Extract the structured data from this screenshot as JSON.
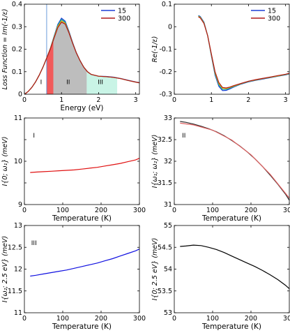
{
  "chart_data": [
    {
      "type": "area",
      "panel": "top-left",
      "ylabel": "Loss Function = Im(-1/ε)",
      "xlabel": "Energy (eV)",
      "xlim": [
        0,
        3.1
      ],
      "ylim": [
        0,
        0.4
      ],
      "xticks": [
        0,
        1,
        2,
        3
      ],
      "yticks": [
        0,
        0.1,
        0.2,
        0.3,
        0.4
      ],
      "ytick_labels": [
        "0",
        "0.1",
        "0.2",
        "0.3",
        "0.4"
      ],
      "legend": {
        "placement": "top-right",
        "entries": [
          {
            "label": "15",
            "color": "#1f3fd6"
          },
          {
            "label": "300",
            "color": "#b01818"
          }
        ]
      },
      "regions": [
        {
          "label": "I",
          "x_start": 0.6,
          "x_end": 0.78,
          "color": "#f25a5a"
        },
        {
          "label": "II",
          "x_start": 0.78,
          "x_end": 1.68,
          "color": "#bdbdbd"
        },
        {
          "label": "III",
          "x_start": 1.68,
          "x_end": 2.5,
          "color": "#c9f4e6"
        }
      ],
      "marker_line_x": 0.6,
      "series": [
        {
          "name": "15",
          "color": "#1f3fd6",
          "x": [
            0.02,
            0.1,
            0.2,
            0.3,
            0.4,
            0.5,
            0.6,
            0.7,
            0.8,
            0.9,
            1.0,
            1.1,
            1.2,
            1.3,
            1.4,
            1.5,
            1.6,
            1.7,
            1.8,
            2.0,
            2.2,
            2.4,
            2.6,
            2.8,
            3.0,
            3.1
          ],
          "y": [
            0.002,
            0.012,
            0.03,
            0.055,
            0.085,
            0.12,
            0.16,
            0.205,
            0.258,
            0.31,
            0.338,
            0.325,
            0.28,
            0.23,
            0.185,
            0.15,
            0.12,
            0.1,
            0.088,
            0.08,
            0.079,
            0.076,
            0.07,
            0.062,
            0.055,
            0.052
          ]
        },
        {
          "name": "",
          "color": "#0aa3a3",
          "x": [
            0.02,
            0.1,
            0.2,
            0.3,
            0.4,
            0.5,
            0.6,
            0.7,
            0.8,
            0.9,
            1.0,
            1.1,
            1.2,
            1.3,
            1.4,
            1.5,
            1.6,
            1.7,
            1.8,
            2.0,
            2.2,
            2.4,
            2.6,
            2.8,
            3.0,
            3.1
          ],
          "y": [
            0.002,
            0.012,
            0.03,
            0.055,
            0.085,
            0.12,
            0.16,
            0.204,
            0.256,
            0.306,
            0.332,
            0.32,
            0.277,
            0.228,
            0.184,
            0.149,
            0.12,
            0.1,
            0.088,
            0.08,
            0.078,
            0.075,
            0.069,
            0.061,
            0.054,
            0.051
          ]
        },
        {
          "name": "",
          "color": "#e2b400",
          "x": [
            0.02,
            0.1,
            0.2,
            0.3,
            0.4,
            0.5,
            0.6,
            0.7,
            0.8,
            0.9,
            1.0,
            1.1,
            1.2,
            1.3,
            1.4,
            1.5,
            1.6,
            1.7,
            1.8,
            2.0,
            2.2,
            2.4,
            2.6,
            2.8,
            3.0,
            3.1
          ],
          "y": [
            0.002,
            0.012,
            0.03,
            0.055,
            0.085,
            0.12,
            0.16,
            0.203,
            0.253,
            0.301,
            0.326,
            0.316,
            0.275,
            0.227,
            0.184,
            0.149,
            0.12,
            0.1,
            0.088,
            0.08,
            0.078,
            0.075,
            0.069,
            0.061,
            0.054,
            0.051
          ]
        },
        {
          "name": "300",
          "color": "#b01818",
          "x": [
            0.02,
            0.1,
            0.2,
            0.3,
            0.4,
            0.5,
            0.6,
            0.7,
            0.8,
            0.9,
            1.0,
            1.1,
            1.2,
            1.3,
            1.4,
            1.5,
            1.6,
            1.7,
            1.8,
            2.0,
            2.2,
            2.4,
            2.6,
            2.8,
            3.0,
            3.1
          ],
          "y": [
            0.002,
            0.012,
            0.03,
            0.055,
            0.085,
            0.12,
            0.16,
            0.202,
            0.25,
            0.296,
            0.32,
            0.312,
            0.273,
            0.226,
            0.184,
            0.149,
            0.12,
            0.1,
            0.088,
            0.08,
            0.078,
            0.075,
            0.069,
            0.061,
            0.054,
            0.051
          ]
        }
      ],
      "annotations": [
        {
          "text": "I",
          "x": 0.45,
          "y": 0.045
        },
        {
          "text": "II",
          "x": 1.18,
          "y": 0.045
        },
        {
          "text": "III",
          "x": 2.05,
          "y": 0.045
        }
      ]
    },
    {
      "type": "line",
      "panel": "top-right",
      "ylabel": "Re(-1/ε)",
      "xlim": [
        0,
        3.1
      ],
      "ylim": [
        -0.3,
        0.1
      ],
      "xticks": [
        0,
        1,
        2,
        3
      ],
      "yticks": [
        -0.3,
        -0.2,
        -0.1,
        0,
        0.1
      ],
      "ytick_labels": [
        "-0.3",
        "-0.2",
        "-0.1",
        "0",
        "0.1"
      ],
      "legend": {
        "placement": "top-right",
        "entries": [
          {
            "label": "15",
            "color": "#1f3fd6"
          },
          {
            "label": "300",
            "color": "#b01818"
          }
        ]
      },
      "series": [
        {
          "name": "15",
          "color": "#1f3fd6",
          "x": [
            0.65,
            0.7,
            0.8,
            0.9,
            1.0,
            1.1,
            1.2,
            1.3,
            1.4,
            1.5,
            1.6,
            1.8,
            2.0,
            2.2,
            2.4,
            2.6,
            2.8,
            3.0,
            3.1
          ],
          "y": [
            0.05,
            0.045,
            0.02,
            -0.04,
            -0.13,
            -0.215,
            -0.265,
            -0.284,
            -0.283,
            -0.276,
            -0.268,
            -0.255,
            -0.245,
            -0.238,
            -0.232,
            -0.226,
            -0.22,
            -0.214,
            -0.21
          ]
        },
        {
          "name": "",
          "color": "#0aa3a3",
          "x": [
            0.65,
            0.7,
            0.8,
            0.9,
            1.0,
            1.1,
            1.2,
            1.3,
            1.4,
            1.5,
            1.6,
            1.8,
            2.0,
            2.2,
            2.4,
            2.6,
            2.8,
            3.0,
            3.1
          ],
          "y": [
            0.048,
            0.043,
            0.018,
            -0.04,
            -0.127,
            -0.21,
            -0.259,
            -0.279,
            -0.279,
            -0.273,
            -0.266,
            -0.254,
            -0.244,
            -0.237,
            -0.231,
            -0.225,
            -0.219,
            -0.213,
            -0.209
          ]
        },
        {
          "name": "",
          "color": "#e2b400",
          "x": [
            0.65,
            0.7,
            0.8,
            0.9,
            1.0,
            1.1,
            1.2,
            1.3,
            1.4,
            1.5,
            1.6,
            1.8,
            2.0,
            2.2,
            2.4,
            2.6,
            2.8,
            3.0,
            3.1
          ],
          "y": [
            0.046,
            0.041,
            0.016,
            -0.04,
            -0.124,
            -0.205,
            -0.253,
            -0.274,
            -0.275,
            -0.27,
            -0.264,
            -0.253,
            -0.243,
            -0.236,
            -0.23,
            -0.224,
            -0.218,
            -0.212,
            -0.208
          ]
        },
        {
          "name": "300",
          "color": "#b01818",
          "x": [
            0.65,
            0.7,
            0.8,
            0.9,
            1.0,
            1.1,
            1.2,
            1.3,
            1.4,
            1.5,
            1.6,
            1.8,
            2.0,
            2.2,
            2.4,
            2.6,
            2.8,
            3.0,
            3.1
          ],
          "y": [
            0.044,
            0.039,
            0.014,
            -0.04,
            -0.121,
            -0.2,
            -0.248,
            -0.27,
            -0.272,
            -0.268,
            -0.262,
            -0.252,
            -0.242,
            -0.235,
            -0.229,
            -0.223,
            -0.217,
            -0.211,
            -0.207
          ]
        }
      ]
    },
    {
      "type": "line",
      "panel": "middle-left",
      "ylabel": "I{0; ω₁} (meV)",
      "xlabel": "Temperature (K)",
      "xlim": [
        0,
        300
      ],
      "ylim": [
        9,
        11
      ],
      "xticks": [
        0,
        100,
        200,
        300
      ],
      "yticks": [
        9,
        9.5,
        10,
        10.5,
        11
      ],
      "ytick_labels": [
        "9",
        "",
        "10",
        "",
        "11"
      ],
      "annotations": [
        {
          "text": "I",
          "x": 25,
          "y": 10.55
        }
      ],
      "series": [
        {
          "name": "",
          "color": "#e01010",
          "x": [
            15,
            30,
            50,
            70,
            90,
            110,
            130,
            150,
            170,
            190,
            210,
            230,
            250,
            270,
            290,
            300
          ],
          "y": [
            9.74,
            9.75,
            9.76,
            9.77,
            9.78,
            9.79,
            9.8,
            9.82,
            9.84,
            9.86,
            9.89,
            9.92,
            9.95,
            9.99,
            10.03,
            10.07
          ]
        }
      ]
    },
    {
      "type": "line",
      "panel": "middle-right",
      "ylabel": "I{ω₁; ω₂} (meV)",
      "xlabel": "Temperature (K)",
      "xlim": [
        0,
        300
      ],
      "ylim": [
        31,
        33
      ],
      "xticks": [
        0,
        100,
        200,
        300
      ],
      "yticks": [
        31,
        31.5,
        32,
        32.5,
        33
      ],
      "ytick_labels": [
        "31",
        "31.5",
        "32",
        "32.5",
        "33"
      ],
      "annotations": [
        {
          "text": "II",
          "x": 25,
          "y": 32.55
        }
      ],
      "series": [
        {
          "name": "",
          "color": "#2a2a2a",
          "x": [
            15,
            30,
            50,
            70,
            90,
            110,
            130,
            150,
            170,
            190,
            210,
            230,
            250,
            270,
            290,
            300
          ],
          "y": [
            32.92,
            32.9,
            32.86,
            32.81,
            32.75,
            32.68,
            32.59,
            32.48,
            32.36,
            32.22,
            32.06,
            31.88,
            31.68,
            31.47,
            31.24,
            31.1
          ]
        },
        {
          "name": "",
          "color": "#e06060",
          "x": [
            15,
            50,
            100,
            150,
            200,
            250,
            300
          ],
          "y": [
            32.88,
            32.84,
            32.72,
            32.49,
            32.15,
            31.7,
            31.15
          ]
        }
      ]
    },
    {
      "type": "line",
      "panel": "bottom-left",
      "ylabel": "I{ω₂; 2.5 eV} (meV)",
      "xlabel": "Temperature (K)",
      "xlim": [
        0,
        300
      ],
      "ylim": [
        11,
        13
      ],
      "xticks": [
        0,
        100,
        200,
        300
      ],
      "yticks": [
        11,
        11.5,
        12,
        12.5,
        13
      ],
      "ytick_labels": [
        "11",
        "11.5",
        "12",
        "12.5",
        "13"
      ],
      "annotations": [
        {
          "text": "III",
          "x": 25,
          "y": 12.55
        }
      ],
      "series": [
        {
          "name": "",
          "color": "#1010e0",
          "x": [
            15,
            30,
            50,
            70,
            90,
            110,
            130,
            150,
            170,
            190,
            210,
            230,
            250,
            270,
            290,
            300
          ],
          "y": [
            11.84,
            11.86,
            11.89,
            11.92,
            11.95,
            11.98,
            12.02,
            12.06,
            12.1,
            12.14,
            12.19,
            12.24,
            12.3,
            12.36,
            12.42,
            12.46
          ]
        }
      ]
    },
    {
      "type": "line",
      "panel": "bottom-right",
      "ylabel": "I{0; 2.5 eV} (meV)",
      "xlabel": "Temperature (K)",
      "xlim": [
        0,
        300
      ],
      "ylim": [
        53,
        55
      ],
      "xticks": [
        0,
        100,
        200,
        300
      ],
      "yticks": [
        53,
        53.5,
        54,
        54.5,
        55
      ],
      "ytick_labels": [
        "53",
        "53.5",
        "54",
        "54.5",
        "55"
      ],
      "series": [
        {
          "name": "",
          "color": "#000000",
          "x": [
            15,
            30,
            50,
            70,
            90,
            110,
            130,
            150,
            170,
            190,
            210,
            230,
            250,
            270,
            290,
            300
          ],
          "y": [
            54.52,
            54.53,
            54.55,
            54.54,
            54.5,
            54.45,
            54.38,
            54.3,
            54.22,
            54.14,
            54.06,
            53.97,
            53.87,
            53.76,
            53.63,
            53.55
          ]
        }
      ]
    }
  ]
}
